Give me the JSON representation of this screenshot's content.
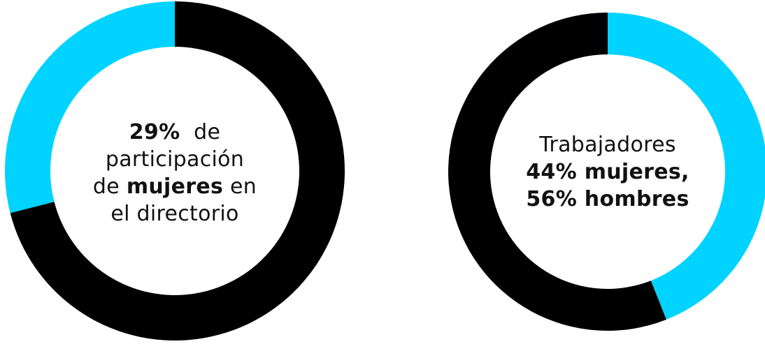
{
  "colors": {
    "primary": "#000000",
    "accent": "#00d3ff",
    "background": "#ffffff"
  },
  "chart_data": [
    {
      "type": "pie",
      "variant": "donut",
      "slices": [
        {
          "value": 29,
          "color": "#00d3ff"
        },
        {
          "value": 71,
          "color": "#000000"
        }
      ],
      "center_text": {
        "line1_value": "29%",
        "line1_rest": "de",
        "line2": "participación",
        "line3_pre": "de",
        "line3_bold": "mujeres",
        "line3_post": "en",
        "line4": "el directorio"
      }
    },
    {
      "type": "pie",
      "variant": "donut",
      "slices": [
        {
          "value": 44,
          "color": "#00d3ff"
        },
        {
          "value": 56,
          "color": "#000000"
        }
      ],
      "center_text": {
        "line1": "Trabajadores",
        "line2": "44% mujeres,",
        "line3": "56% hombres"
      }
    }
  ]
}
